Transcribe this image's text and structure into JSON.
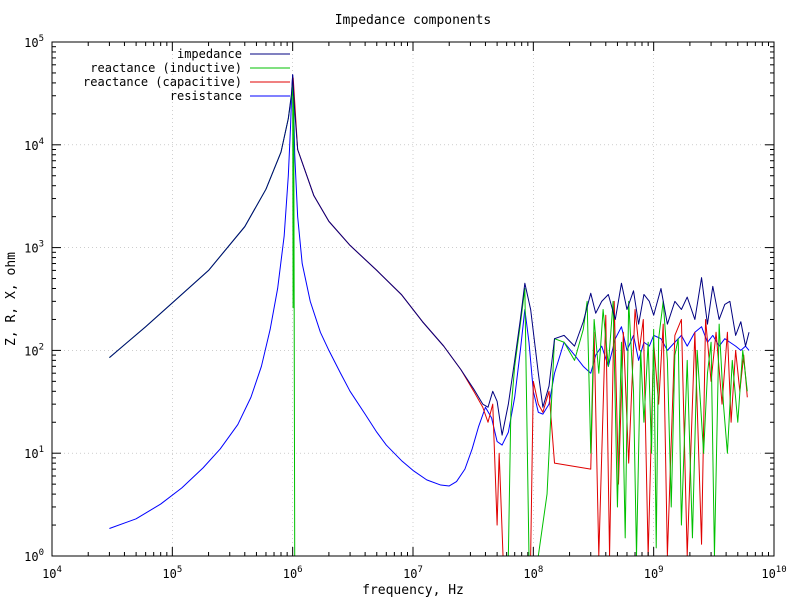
{
  "chart_data": {
    "type": "line",
    "title": "Impedance components",
    "xlabel": "frequency, Hz",
    "ylabel": "Z, R, X, ohm",
    "xscale": "log",
    "yscale": "log",
    "xlim": [
      10000,
      10000000000
    ],
    "ylim": [
      1,
      100000
    ],
    "grid": true,
    "legend_position": "top-left",
    "x_ticks": [
      {
        "base": "10",
        "exp": "4"
      },
      {
        "base": "10",
        "exp": "5"
      },
      {
        "base": "10",
        "exp": "6"
      },
      {
        "base": "10",
        "exp": "7"
      },
      {
        "base": "10",
        "exp": "8"
      },
      {
        "base": "10",
        "exp": "9"
      },
      {
        "base": "10",
        "exp": "10"
      }
    ],
    "y_ticks": [
      {
        "base": "10",
        "exp": "0"
      },
      {
        "base": "10",
        "exp": "1"
      },
      {
        "base": "10",
        "exp": "2"
      },
      {
        "base": "10",
        "exp": "3"
      },
      {
        "base": "10",
        "exp": "4"
      },
      {
        "base": "10",
        "exp": "5"
      }
    ],
    "series": [
      {
        "name": "impedance",
        "color": "#000080",
        "points": [
          [
            30000,
            85
          ],
          [
            60000,
            170
          ],
          [
            100000,
            290
          ],
          [
            200000,
            600
          ],
          [
            400000,
            1600
          ],
          [
            600000,
            3700
          ],
          [
            800000,
            8500
          ],
          [
            920000,
            18000
          ],
          [
            980000,
            32000
          ],
          [
            1000000,
            48000
          ],
          [
            1030000,
            25000
          ],
          [
            1100000,
            9000
          ],
          [
            1500000,
            3200
          ],
          [
            2000000,
            1800
          ],
          [
            3000000,
            1050
          ],
          [
            5000000,
            600
          ],
          [
            8000000,
            350
          ],
          [
            12000000,
            190
          ],
          [
            18000000,
            110
          ],
          [
            25000000,
            65
          ],
          [
            32000000,
            42
          ],
          [
            38000000,
            30
          ],
          [
            42000000,
            28
          ],
          [
            46000000,
            40
          ],
          [
            50000000,
            32
          ],
          [
            55000000,
            15
          ],
          [
            62000000,
            30
          ],
          [
            70000000,
            80
          ],
          [
            78000000,
            200
          ],
          [
            85000000,
            450
          ],
          [
            95000000,
            250
          ],
          [
            110000000,
            60
          ],
          [
            120000000,
            28
          ],
          [
            135000000,
            45
          ],
          [
            150000000,
            130
          ],
          [
            180000000,
            140
          ],
          [
            220000000,
            110
          ],
          [
            260000000,
            190
          ],
          [
            300000000,
            360
          ],
          [
            330000000,
            230
          ],
          [
            370000000,
            300
          ],
          [
            420000000,
            350
          ],
          [
            480000000,
            200
          ],
          [
            540000000,
            450
          ],
          [
            600000000,
            250
          ],
          [
            680000000,
            380
          ],
          [
            750000000,
            180
          ],
          [
            830000000,
            350
          ],
          [
            920000000,
            300
          ],
          [
            1000000000,
            220
          ],
          [
            1150000000,
            400
          ],
          [
            1300000000,
            180
          ],
          [
            1500000000,
            300
          ],
          [
            1700000000,
            250
          ],
          [
            1900000000,
            330
          ],
          [
            2200000000,
            200
          ],
          [
            2500000000,
            510
          ],
          [
            2800000000,
            180
          ],
          [
            3100000000,
            420
          ],
          [
            3500000000,
            200
          ],
          [
            3900000000,
            280
          ],
          [
            4300000000,
            300
          ],
          [
            4800000000,
            140
          ],
          [
            5300000000,
            190
          ],
          [
            5800000000,
            110
          ],
          [
            6200000000,
            150
          ]
        ]
      },
      {
        "name": "reactance (inductive)",
        "color": "#00c000",
        "points": [
          [
            30000,
            85
          ],
          [
            60000,
            170
          ],
          [
            100000,
            290
          ],
          [
            200000,
            600
          ],
          [
            400000,
            1600
          ],
          [
            600000,
            3700
          ],
          [
            800000,
            8500
          ],
          [
            920000,
            18000
          ],
          [
            980000,
            30000
          ],
          [
            1000000,
            40000
          ],
          [
            1008000,
            260
          ],
          [
            1020000,
            30000
          ],
          [
            1040000,
            1
          ],
          [
            62000000,
            1
          ],
          [
            65000000,
            25
          ],
          [
            70000000,
            70
          ],
          [
            78000000,
            180
          ],
          [
            85000000,
            400
          ],
          [
            92000000,
            1
          ],
          [
            110000000,
            1
          ],
          [
            130000000,
            4
          ],
          [
            150000000,
            130
          ],
          [
            180000000,
            120
          ],
          [
            220000000,
            80
          ],
          [
            260000000,
            160
          ],
          [
            280000000,
            300
          ],
          [
            300000000,
            10
          ],
          [
            320000000,
            200
          ],
          [
            350000000,
            60
          ],
          [
            380000000,
            250
          ],
          [
            420000000,
            70
          ],
          [
            460000000,
            300
          ],
          [
            500000000,
            3
          ],
          [
            540000000,
            120
          ],
          [
            580000000,
            1.5
          ],
          [
            620000000,
            300
          ],
          [
            680000000,
            40
          ],
          [
            720000000,
            1
          ],
          [
            780000000,
            100
          ],
          [
            830000000,
            20
          ],
          [
            900000000,
            120
          ],
          [
            960000000,
            10
          ],
          [
            1000000000,
            160
          ],
          [
            1050000000,
            1.2
          ],
          [
            1100000000,
            130
          ],
          [
            1200000000,
            300
          ],
          [
            1300000000,
            80
          ],
          [
            1400000000,
            3
          ],
          [
            1500000000,
            90
          ],
          [
            1600000000,
            130
          ],
          [
            1700000000,
            2
          ],
          [
            1900000000,
            80
          ],
          [
            2100000000,
            1.5
          ],
          [
            2300000000,
            100
          ],
          [
            2600000000,
            10
          ],
          [
            2800000000,
            60
          ],
          [
            3000000000,
            120
          ],
          [
            3200000000,
            1
          ],
          [
            3500000000,
            180
          ],
          [
            3800000000,
            30
          ],
          [
            4100000000,
            10
          ],
          [
            4500000000,
            80
          ],
          [
            5000000000,
            20
          ],
          [
            5500000000,
            100
          ],
          [
            6000000000,
            40
          ]
        ]
      },
      {
        "name": "reactance (capacitive)",
        "color": "#e00000",
        "points": [
          [
            1010000,
            45000
          ],
          [
            1100000,
            9000
          ],
          [
            1500000,
            3200
          ],
          [
            2000000,
            1800
          ],
          [
            3000000,
            1050
          ],
          [
            5000000,
            600
          ],
          [
            8000000,
            350
          ],
          [
            12000000,
            190
          ],
          [
            18000000,
            110
          ],
          [
            25000000,
            65
          ],
          [
            32000000,
            40
          ],
          [
            38000000,
            28
          ],
          [
            42000000,
            20
          ],
          [
            46000000,
            30
          ],
          [
            50000000,
            2
          ],
          [
            52000000,
            10
          ],
          [
            56000000,
            1
          ],
          [
            95000000,
            1
          ],
          [
            100000000,
            50
          ],
          [
            110000000,
            30
          ],
          [
            120000000,
            25
          ],
          [
            135000000,
            40
          ],
          [
            150000000,
            8
          ],
          [
            300000000,
            7
          ],
          [
            320000000,
            150
          ],
          [
            350000000,
            1
          ],
          [
            400000000,
            220
          ],
          [
            430000000,
            1
          ],
          [
            470000000,
            300
          ],
          [
            510000000,
            5
          ],
          [
            560000000,
            150
          ],
          [
            620000000,
            8
          ],
          [
            700000000,
            250
          ],
          [
            760000000,
            100
          ],
          [
            820000000,
            200
          ],
          [
            900000000,
            1
          ],
          [
            1000000000,
            120
          ],
          [
            1100000000,
            30
          ],
          [
            1200000000,
            180
          ],
          [
            1300000000,
            1
          ],
          [
            1500000000,
            140
          ],
          [
            1700000000,
            200
          ],
          [
            1900000000,
            1
          ],
          [
            2200000000,
            150
          ],
          [
            2500000000,
            1.3
          ],
          [
            2700000000,
            200
          ],
          [
            3000000000,
            50
          ],
          [
            3300000000,
            150
          ],
          [
            3700000000,
            30
          ],
          [
            4100000000,
            150
          ],
          [
            4400000000,
            20
          ],
          [
            4800000000,
            100
          ],
          [
            5200000000,
            40
          ],
          [
            5600000000,
            90
          ],
          [
            6000000000,
            35
          ]
        ]
      },
      {
        "name": "resistance",
        "color": "#0000ff",
        "points": [
          [
            30000,
            1.85
          ],
          [
            50000,
            2.3
          ],
          [
            80000,
            3.2
          ],
          [
            120000,
            4.6
          ],
          [
            180000,
            7.2
          ],
          [
            250000,
            11
          ],
          [
            350000,
            19
          ],
          [
            450000,
            35
          ],
          [
            550000,
            70
          ],
          [
            650000,
            160
          ],
          [
            750000,
            400
          ],
          [
            850000,
            1300
          ],
          [
            920000,
            5000
          ],
          [
            960000,
            15000
          ],
          [
            985000,
            35000
          ],
          [
            1000000,
            48000
          ],
          [
            1015000,
            30000
          ],
          [
            1040000,
            8000
          ],
          [
            1100000,
            2000
          ],
          [
            1200000,
            700
          ],
          [
            1400000,
            300
          ],
          [
            1700000,
            150
          ],
          [
            2000000,
            100
          ],
          [
            2500000,
            60
          ],
          [
            3000000,
            40
          ],
          [
            4000000,
            24
          ],
          [
            5000000,
            16
          ],
          [
            6000000,
            12
          ],
          [
            8000000,
            8.5
          ],
          [
            10000000,
            6.8
          ],
          [
            13000000,
            5.5
          ],
          [
            17000000,
            4.9
          ],
          [
            20000000,
            4.8
          ],
          [
            23000000,
            5.3
          ],
          [
            27000000,
            7
          ],
          [
            31000000,
            11
          ],
          [
            35000000,
            18
          ],
          [
            40000000,
            28
          ],
          [
            45000000,
            22
          ],
          [
            50000000,
            13
          ],
          [
            55000000,
            12
          ],
          [
            62000000,
            16
          ],
          [
            70000000,
            35
          ],
          [
            78000000,
            100
          ],
          [
            85000000,
            250
          ],
          [
            92000000,
            120
          ],
          [
            100000000,
            40
          ],
          [
            110000000,
            25
          ],
          [
            120000000,
            24
          ],
          [
            135000000,
            30
          ],
          [
            150000000,
            60
          ],
          [
            180000000,
            120
          ],
          [
            220000000,
            90
          ],
          [
            260000000,
            70
          ],
          [
            300000000,
            60
          ],
          [
            330000000,
            90
          ],
          [
            370000000,
            110
          ],
          [
            420000000,
            70
          ],
          [
            480000000,
            130
          ],
          [
            540000000,
            170
          ],
          [
            600000000,
            100
          ],
          [
            680000000,
            140
          ],
          [
            750000000,
            80
          ],
          [
            830000000,
            120
          ],
          [
            920000000,
            110
          ],
          [
            1000000000,
            140
          ],
          [
            1150000000,
            130
          ],
          [
            1300000000,
            100
          ],
          [
            1500000000,
            120
          ],
          [
            1700000000,
            140
          ],
          [
            1900000000,
            110
          ],
          [
            2200000000,
            150
          ],
          [
            2500000000,
            170
          ],
          [
            2800000000,
            120
          ],
          [
            3100000000,
            140
          ],
          [
            3500000000,
            110
          ],
          [
            3900000000,
            130
          ],
          [
            4300000000,
            120
          ],
          [
            4800000000,
            110
          ],
          [
            5300000000,
            100
          ],
          [
            5800000000,
            110
          ],
          [
            6200000000,
            100
          ]
        ]
      }
    ]
  }
}
